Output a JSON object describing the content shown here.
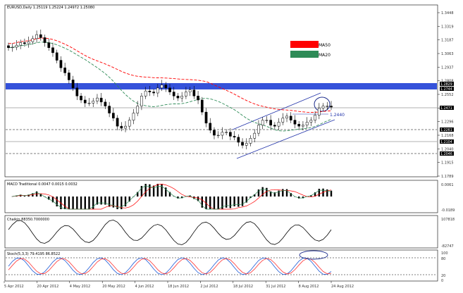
{
  "main_panel": {
    "header": "EURUSD,Daily  1.25119 1.25224 1.24972 1.25080",
    "price_ticks": [
      "1.3448",
      "1.3319",
      "1.3187",
      "1.3063",
      "1.2937",
      "1.2808",
      "1.2552",
      "1.2425",
      "1.2296",
      "1.2168",
      "1.2040",
      "1.1915",
      "1.1789"
    ],
    "level_labels": [
      "1.2829",
      "1.2744",
      "1.2471",
      "1.2261",
      "1.2104",
      "1.2046"
    ],
    "annotation": "1.2440",
    "legend": [
      {
        "label": "MA50",
        "color": "#ff0000"
      },
      {
        "label": "MA20",
        "color": "#2e8b57"
      }
    ]
  },
  "macd_panel": {
    "header": "MACD Traditional 0.0047 0.0015 0.0032",
    "ticks": [
      "0.0061",
      "-0.0189"
    ]
  },
  "chaikin_panel": {
    "header": "Chaikin 88350.7000000",
    "ticks": [
      "107818",
      "-82747"
    ]
  },
  "stoch_panel": {
    "header": "Stoch(5,3,3) 79.4195 86.8522",
    "ticks": [
      "100",
      "80",
      "20",
      "0"
    ]
  },
  "x_axis_labels": [
    "5 Apr 2012",
    "20 Apr 2012",
    "4 May 2012",
    "20 May 2012",
    "4 Jun 2012",
    "18 Jun 2012",
    "2 Jul 2012",
    "18 Jul 2012",
    "31 Jul 2012",
    "8 Aug 2012",
    "24 Aug 2012"
  ],
  "chart_data": {
    "type": "candlestick",
    "title": "EURUSD,Daily",
    "series": [
      {
        "name": "EURUSD",
        "values": [
          1.31,
          1.3105,
          1.3125,
          1.315,
          1.314,
          1.316,
          1.319,
          1.323,
          1.32,
          1.315,
          1.31,
          1.305,
          1.2975,
          1.29,
          1.285,
          1.278,
          1.27,
          1.262,
          1.258,
          1.255,
          1.255,
          1.257,
          1.26,
          1.256,
          1.252,
          1.245,
          1.24,
          1.232,
          1.23,
          1.232,
          1.238,
          1.245,
          1.252,
          1.262,
          1.267,
          1.266,
          1.265,
          1.27,
          1.273,
          1.27,
          1.266,
          1.262,
          1.26,
          1.262,
          1.266,
          1.268,
          1.262,
          1.258,
          1.246,
          1.235,
          1.228,
          1.223,
          1.223,
          1.226,
          1.226,
          1.222,
          1.221,
          1.216,
          1.213,
          1.215,
          1.22,
          1.225,
          1.233,
          1.238,
          1.238,
          1.233,
          1.232,
          1.236,
          1.24,
          1.242,
          1.238,
          1.234,
          1.232,
          1.233,
          1.236,
          1.238,
          1.243,
          1.25,
          1.252,
          1.252,
          1.251
        ]
      }
    ]
  }
}
